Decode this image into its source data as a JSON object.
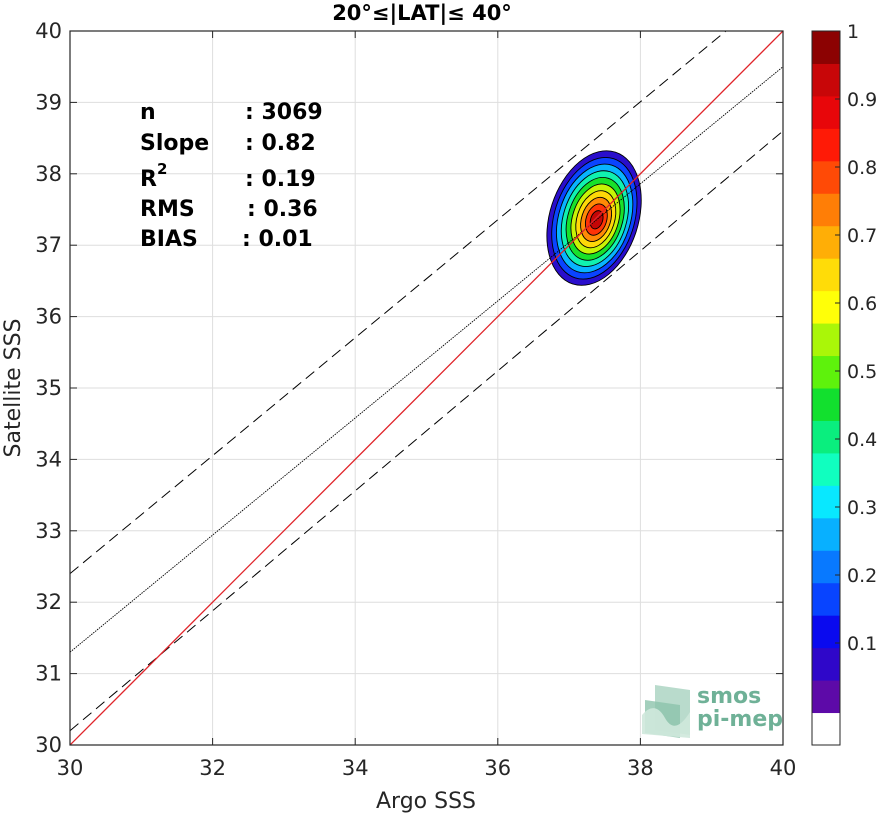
{
  "chart_data": {
    "type": "contour",
    "title": "20°≤|LAT|≤ 40°",
    "xlabel": "Argo SSS",
    "ylabel": "Satellite SSS",
    "xlim": [
      30,
      40
    ],
    "ylim": [
      30,
      40
    ],
    "x_ticks": [
      30,
      32,
      34,
      36,
      38,
      40
    ],
    "y_ticks": [
      30,
      31,
      32,
      33,
      34,
      35,
      36,
      37,
      38,
      39,
      40
    ],
    "grid": true,
    "stats": [
      {
        "key": "n",
        "value": ": 3069"
      },
      {
        "key": "Slope",
        "value": ": 0.82"
      },
      {
        "key": "R",
        "sup": "2",
        "value": ": 0.19"
      },
      {
        "key": "RMS",
        "value": ": 0.36"
      },
      {
        "key": "BIAS",
        "value": ": 0.01"
      }
    ],
    "lines": {
      "identity": {
        "color": "#e0242a",
        "points": [
          [
            30,
            30
          ],
          [
            40,
            40
          ]
        ]
      },
      "regression": {
        "color": "#000000",
        "points": [
          [
            30,
            31.3
          ],
          [
            40,
            39.5
          ]
        ]
      },
      "upper_dashed": {
        "color": "#000000",
        "points": [
          [
            30,
            32.4
          ],
          [
            39.2,
            40
          ]
        ]
      },
      "lower_dashed": {
        "color": "#000000",
        "points": [
          [
            30,
            30.2
          ],
          [
            40,
            38.6
          ]
        ]
      }
    },
    "density": {
      "center": [
        37.35,
        37.38
      ],
      "outer_half_width": [
        0.62,
        0.97
      ],
      "tilt_deg": 18,
      "levels": [
        0.1,
        0.2,
        0.3,
        0.4,
        0.5,
        0.6,
        0.7,
        0.8,
        0.9
      ]
    },
    "colorbar": {
      "ticks": [
        0.1,
        0.2,
        0.3,
        0.4,
        0.5,
        0.6,
        0.7,
        0.8,
        0.9,
        1
      ],
      "tick_labels": [
        "0.1",
        "0.2",
        "0.3",
        "0.4",
        "0.5",
        "0.6",
        "0.7",
        "0.8",
        "0.9",
        "1"
      ],
      "colors": [
        "#ffffff",
        "#5d0aa8",
        "#2f07c9",
        "#0a0aef",
        "#0844ff",
        "#0879ff",
        "#08b0ff",
        "#08e8ff",
        "#10ffbf",
        "#0aee7e",
        "#12e02e",
        "#5ef20c",
        "#aaf608",
        "#ffff08",
        "#ffdc08",
        "#ffae06",
        "#ff7e06",
        "#ff4a06",
        "#ff1a06",
        "#e8060a",
        "#c80608",
        "#8c0202"
      ]
    }
  },
  "logo": {
    "line1": "smos",
    "line2": "pi-mep"
  }
}
